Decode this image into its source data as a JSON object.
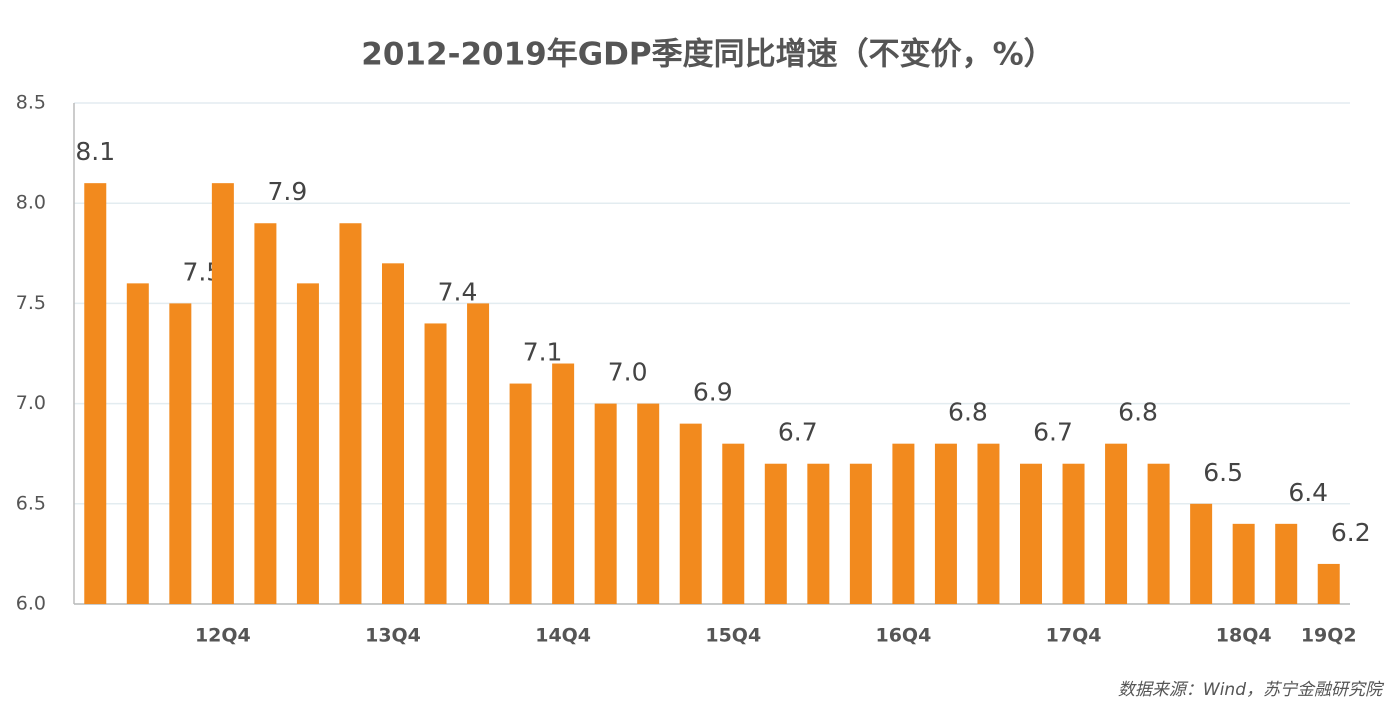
{
  "chart_data": {
    "type": "bar",
    "title": "2012-2019年GDP季度同比增速（不变价，%）",
    "categories": [
      null,
      null,
      null,
      "12Q4",
      null,
      null,
      null,
      "13Q4",
      null,
      null,
      null,
      "14Q4",
      null,
      null,
      null,
      "15Q4",
      null,
      null,
      null,
      "16Q4",
      null,
      null,
      null,
      "17Q4",
      null,
      null,
      null,
      "18Q4",
      null,
      "19Q2"
    ],
    "values": [
      8.1,
      7.6,
      7.5,
      8.1,
      7.9,
      7.6,
      7.9,
      7.7,
      7.4,
      7.5,
      7.1,
      7.2,
      7.0,
      7.0,
      6.9,
      6.8,
      6.7,
      6.7,
      6.7,
      6.8,
      6.8,
      6.8,
      6.7,
      6.7,
      6.8,
      6.7,
      6.5,
      6.4,
      6.4,
      6.2
    ],
    "value_labels": [
      "8.1",
      null,
      "7.5",
      null,
      "7.9",
      null,
      null,
      null,
      "7.4",
      null,
      "7.1",
      null,
      "7.0",
      null,
      "6.9",
      null,
      "6.7",
      null,
      null,
      null,
      "6.8",
      null,
      "6.7",
      null,
      "6.8",
      null,
      "6.5",
      null,
      "6.4",
      "6.2"
    ],
    "color": "#f28a1e",
    "ylim": [
      6.0,
      8.5
    ],
    "yticks": [
      {
        "value": 6.0,
        "label": "6.0"
      },
      6.5,
      {
        "value": 7.0,
        "label": "7.0"
      },
      7.5,
      {
        "value": 8.0,
        "label": "8.0"
      },
      8.5
    ],
    "grid": true,
    "source": "数据来源：Wind，苏宁金融研究院"
  }
}
